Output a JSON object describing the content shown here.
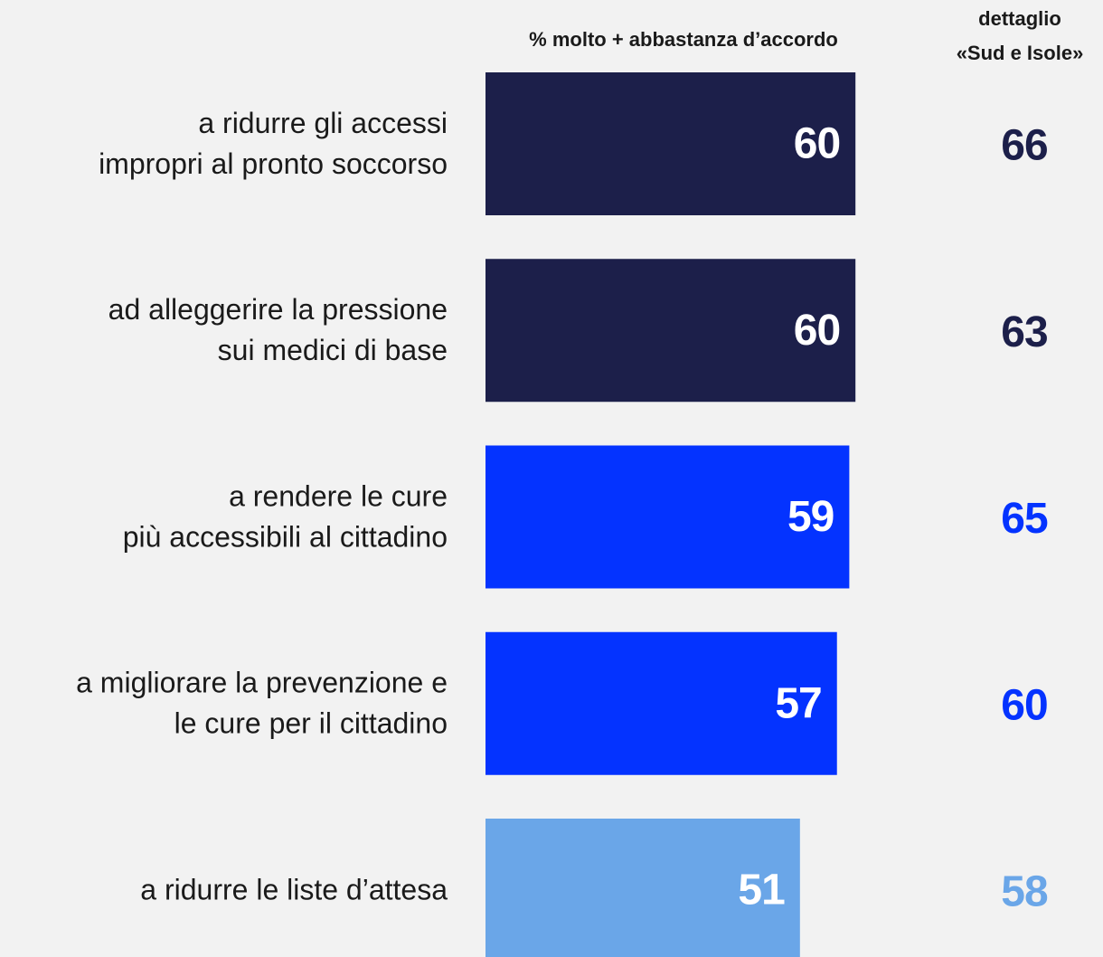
{
  "chart_data": {
    "type": "bar",
    "orientation": "horizontal",
    "title": "% molto + abbastanza d’accordo",
    "categories": [
      [
        "a ridurre gli accessi",
        "impropri al pronto soccorso"
      ],
      [
        "ad alleggerire la pressione",
        "sui medici di base"
      ],
      [
        "a rendere le cure",
        "più accessibili al cittadino"
      ],
      [
        "a migliorare la prevenzione e",
        "le cure per il cittadino"
      ],
      [
        "a ridurre le liste d’attesa"
      ]
    ],
    "values": [
      60,
      60,
      59,
      57,
      51
    ],
    "colors": [
      "#1c1f4a",
      "#1c1f4a",
      "#0433ff",
      "#0433ff",
      "#6aa6e8"
    ],
    "xlim": [
      0,
      100
    ],
    "detail": {
      "title": [
        "dettaglio",
        "«Sud e Isole»"
      ],
      "values": [
        66,
        63,
        65,
        60,
        58
      ]
    }
  }
}
